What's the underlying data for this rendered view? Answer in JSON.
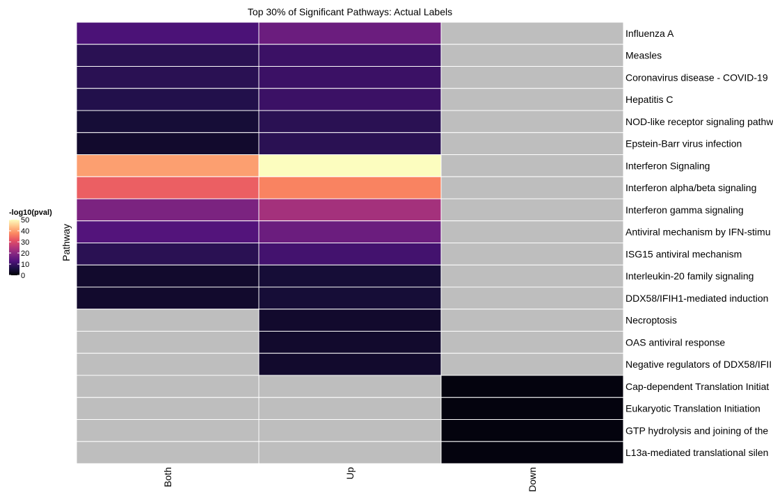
{
  "chart_data": {
    "type": "heatmap",
    "title": "Top 30% of Significant Pathways: Actual Labels",
    "xlabel": "",
    "ylabel": "Pathway",
    "x_categories": [
      "Both",
      "Up",
      "Down"
    ],
    "y_categories": [
      "Influenza A",
      "Measles",
      "Coronavirus disease - COVID-19",
      "Hepatitis C",
      "NOD-like receptor signaling pathw",
      "Epstein-Barr virus infection",
      "Interferon Signaling",
      "Interferon alpha/beta signaling",
      "Interferon gamma signaling",
      "Antiviral mechanism by IFN-stimu",
      "ISG15 antiviral mechanism",
      "Interleukin-20 family signaling",
      "DDX58/IFIH1-mediated induction",
      "Necroptosis",
      "OAS antiviral response",
      "Negative regulators of DDX58/IFII",
      "Cap-dependent Translation Initiat",
      "Eukaryotic Translation Initiation",
      "GTP hydrolysis and joining of the",
      "L13a-mediated translational silen"
    ],
    "values": [
      [
        12,
        16,
        null
      ],
      [
        8,
        10,
        null
      ],
      [
        8,
        10,
        null
      ],
      [
        7,
        10,
        null
      ],
      [
        5,
        8,
        null
      ],
      [
        4,
        8,
        null
      ],
      [
        40,
        50,
        null
      ],
      [
        33,
        37,
        null
      ],
      [
        18,
        23,
        null
      ],
      [
        13,
        16,
        null
      ],
      [
        8,
        11,
        null
      ],
      [
        4,
        5,
        null
      ],
      [
        4,
        5,
        null
      ],
      [
        null,
        4,
        null
      ],
      [
        null,
        4,
        null
      ],
      [
        null,
        4,
        null
      ],
      [
        null,
        null,
        1
      ],
      [
        null,
        null,
        1
      ],
      [
        null,
        null,
        1
      ],
      [
        null,
        null,
        1
      ]
    ],
    "na_color": "#bebebe",
    "colorscale": "magma",
    "legend": {
      "title": "-log10(pval)",
      "range": [
        0,
        50
      ],
      "ticks": [
        "0",
        "10",
        "20",
        "30",
        "40",
        "50"
      ],
      "placement": "left"
    }
  }
}
